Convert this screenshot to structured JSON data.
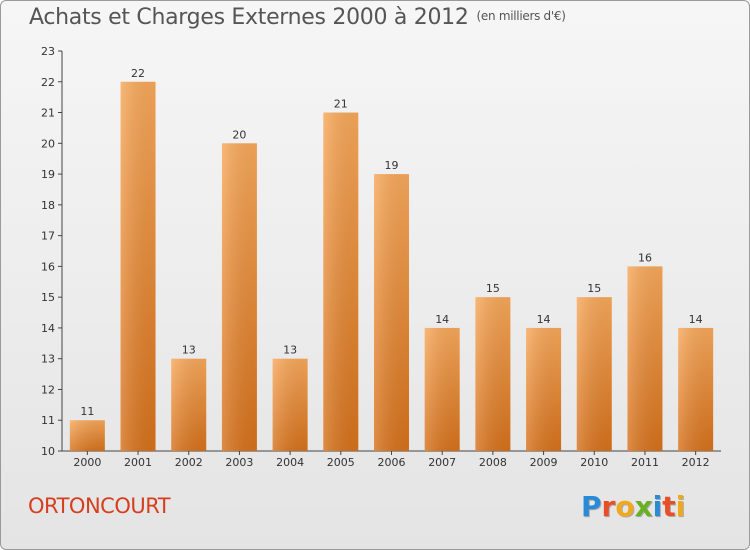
{
  "title": "Achats et Charges Externes 2000 à 2012",
  "subtitle": "(en milliers d'€)",
  "commune": "ORTONCOURT",
  "logo": {
    "letters": [
      "P",
      "r",
      "o",
      "x",
      "i",
      "t",
      "i"
    ],
    "colors": [
      "#2a8ad6",
      "#e84f26",
      "#f0a81c",
      "#6ab024",
      "#2a8ad6",
      "#e84f26",
      "#f0a81c"
    ]
  },
  "colors": {
    "bar_top": "#f7a85a",
    "bar_bottom": "#d6711b",
    "commune": "#d63f1e",
    "axis": "#444444"
  },
  "chart_data": {
    "type": "bar",
    "categories": [
      "2000",
      "2001",
      "2002",
      "2003",
      "2004",
      "2005",
      "2006",
      "2007",
      "2008",
      "2009",
      "2010",
      "2011",
      "2012"
    ],
    "values": [
      11,
      22,
      13,
      20,
      13,
      21,
      19,
      14,
      15,
      14,
      15,
      16,
      14
    ],
    "ylim": [
      10,
      23
    ],
    "yticks": [
      10,
      11,
      12,
      13,
      14,
      15,
      16,
      17,
      18,
      19,
      20,
      21,
      22,
      23
    ],
    "xlabel": "",
    "ylabel": "",
    "grid": false,
    "legend": "none"
  }
}
